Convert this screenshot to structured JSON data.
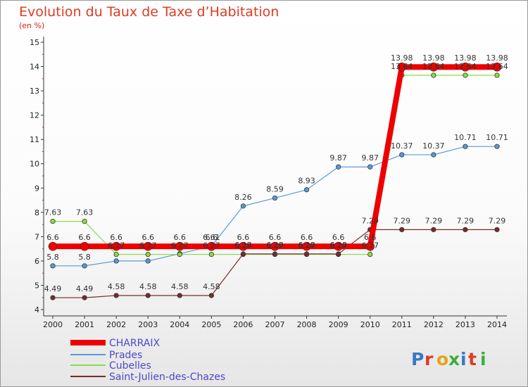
{
  "title": "Evolution du Taux de Taxe d’Habitation",
  "unit_label": "(en %)",
  "brand": {
    "text": "Proxiti"
  },
  "chart_data": {
    "type": "line",
    "title": "Evolution du Taux de Taxe d’Habitation",
    "ylabel": "(en %)",
    "x": [
      2000,
      2001,
      2002,
      2003,
      2004,
      2005,
      2006,
      2007,
      2008,
      2009,
      2010,
      2011,
      2012,
      2013,
      2014
    ],
    "ylim": [
      4,
      15
    ],
    "yticks": [
      4,
      5,
      6,
      7,
      8,
      9,
      10,
      11,
      12,
      13,
      14,
      15
    ],
    "grid": false,
    "legend_position": "bottom-left",
    "series": [
      {
        "name": "CHARRAIX",
        "color": "#ee0000",
        "values": [
          6.6,
          6.6,
          6.6,
          6.6,
          6.6,
          6.6,
          6.6,
          6.6,
          6.6,
          6.6,
          6.6,
          13.98,
          13.98,
          13.98,
          13.98
        ],
        "labels": [
          "6.6",
          "6.6",
          "6.6",
          "6.6",
          "6.6",
          "6.6",
          "6.6",
          "6.6",
          "6.6",
          "6.6",
          "6.6",
          "13.98",
          "13.98",
          "13.98",
          "13.98"
        ]
      },
      {
        "name": "Prades",
        "color": "#5a9ad6",
        "values": [
          5.8,
          5.8,
          6.0,
          6.0,
          6.3,
          6.61,
          8.26,
          8.59,
          8.93,
          9.87,
          9.87,
          10.37,
          10.37,
          10.71,
          10.71
        ],
        "labels": [
          "5.8",
          "5.8",
          "",
          "",
          "",
          "6.61",
          "8.26",
          "8.59",
          "8.93",
          "9.87",
          "9.87",
          "10.37",
          "10.37",
          "10.71",
          "10.71"
        ]
      },
      {
        "name": "Cubelles",
        "color": "#88dd44",
        "values": [
          7.63,
          7.63,
          6.27,
          6.27,
          6.27,
          6.27,
          6.27,
          6.27,
          6.27,
          6.27,
          6.27,
          13.64,
          13.64,
          13.64,
          13.64
        ],
        "labels": [
          "7.63",
          "7.63",
          "6.27",
          "6.27",
          "6.27",
          "6.27",
          "6.27",
          "6.27",
          "6.27",
          "6.27",
          "6.27",
          "13.64",
          "13.64",
          "13.64",
          "13.64"
        ]
      },
      {
        "name": "Saint-Julien-des-Chazes",
        "color": "#7a2a2a",
        "values": [
          4.49,
          4.49,
          4.58,
          4.58,
          4.58,
          4.58,
          6.29,
          6.29,
          6.29,
          6.29,
          7.29,
          7.29,
          7.29,
          7.29,
          7.29
        ],
        "labels": [
          "4.49",
          "4.49",
          "4.58",
          "4.58",
          "4.58",
          "4.58",
          "6.29",
          "6.29",
          "6.29",
          "6.29",
          "7.29",
          "7.29",
          "7.29",
          "7.29",
          "7.29"
        ]
      }
    ]
  }
}
